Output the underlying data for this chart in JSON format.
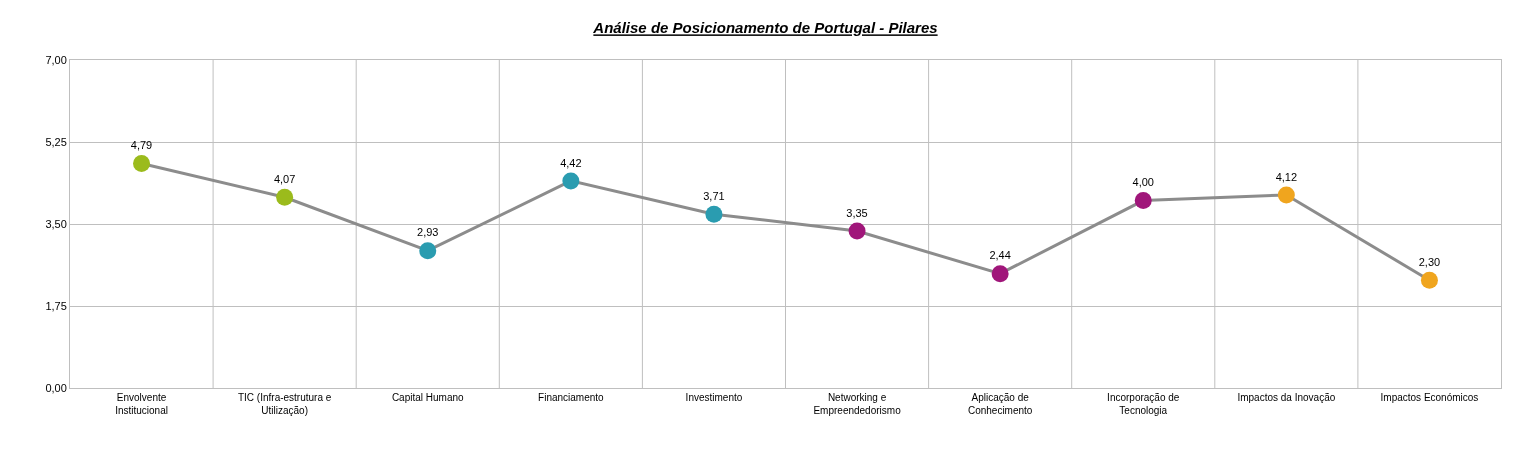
{
  "chart_data": {
    "type": "line",
    "title": "Análise de Posicionamento de Portugal - Pilares",
    "categories": [
      "Envolvente Institucional",
      "TIC (Infra-estrutura e Utilização)",
      "Capital Humano",
      "Financiamento",
      "Investimento",
      "Networking e Empreendedorismo",
      "Aplicação de Conhecimento",
      "Incorporação de Tecnologia",
      "Impactos da Inovação",
      "Impactos Económicos"
    ],
    "series": [
      {
        "color": "#8c8c8c",
        "values": [
          4.79,
          4.07,
          2.93,
          4.42,
          3.71,
          3.35,
          2.44,
          4.0,
          4.12,
          2.3
        ],
        "colors": [
          "#9bbb1c",
          "#9bbb1c",
          "#2a9cb0",
          "#2a9cb0",
          "#2a9cb0",
          "#a0167a",
          "#a0167a",
          "#a0167a",
          "#f0a51e",
          "#f0a51e"
        ],
        "value_labels": [
          "4,79",
          "4,07",
          "2,93",
          "4,42",
          "3,71",
          "3,35",
          "2,44",
          "4,00",
          "4,12",
          "2,30"
        ]
      }
    ],
    "ylim": [
      0,
      7
    ],
    "yticks": [
      {
        "value": 0,
        "label": "0,00"
      },
      {
        "value": 1.75,
        "label": "1,75"
      },
      {
        "value": 3.5,
        "label": "3,50"
      },
      {
        "value": 5.25,
        "label": "5,25"
      },
      {
        "value": 7,
        "label": "7,00"
      }
    ],
    "grid": true,
    "marker": "circle",
    "line_style": "solid"
  }
}
